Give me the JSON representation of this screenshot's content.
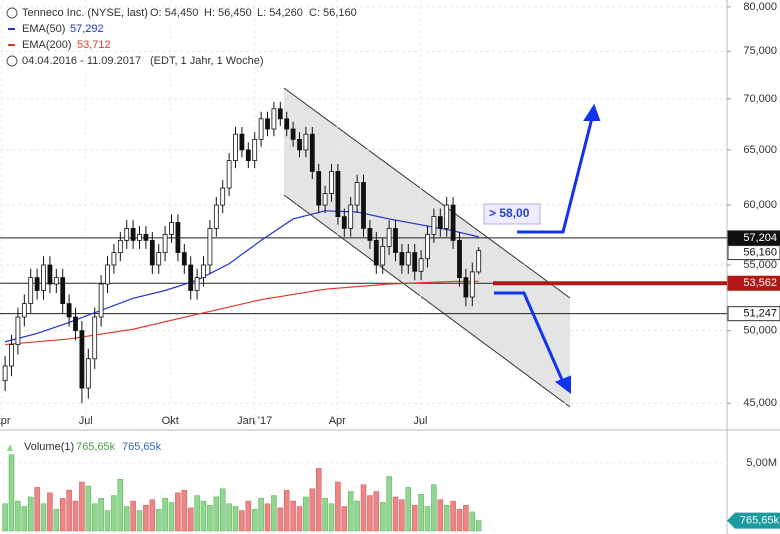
{
  "header": {
    "title": "Tenneco Inc. (NYSE, last)",
    "ohlc_text": [
      "O: 54,450",
      "H: 56,450",
      "L: 54,260",
      "C: 56,160"
    ],
    "range": "04.04.2016 - 11.09.2017",
    "range_note": "(EDT, 1 Jahr, 1 Woche)"
  },
  "chart_data": [
    {
      "type": "candlestick",
      "log_scale": true,
      "grid": true,
      "xlim": [
        -0.8,
        112.8
      ],
      "xticks": [
        {
          "value": -0.5,
          "label": "Apr"
        },
        {
          "value": 12.6,
          "label": "Jul"
        },
        {
          "value": 25.8,
          "label": "Okt"
        },
        {
          "value": 39,
          "label": "Jan '17"
        },
        {
          "value": 51.9,
          "label": "Apr"
        },
        {
          "value": 64.9,
          "label": "Jul"
        }
      ],
      "ylim": [
        43.6,
        80.8
      ],
      "yticks": [
        {
          "value": 45,
          "label": "45,000"
        },
        {
          "value": 50,
          "label": "50,000"
        },
        {
          "value": 55,
          "label": "55,000"
        },
        {
          "value": 60,
          "label": "60,000"
        },
        {
          "value": 65,
          "label": "65,000"
        },
        {
          "value": 70,
          "label": "70,000"
        },
        {
          "value": 75,
          "label": "75,000"
        },
        {
          "value": 80,
          "label": "80,000"
        }
      ],
      "x": [
        0,
        1,
        2,
        3,
        4,
        5,
        6,
        7,
        8,
        9,
        10,
        11,
        12,
        13,
        14,
        15,
        16,
        17,
        18,
        19,
        20,
        21,
        22,
        23,
        24,
        25,
        26,
        27,
        28,
        29,
        30,
        31,
        32,
        33,
        34,
        35,
        36,
        37,
        38,
        39,
        40,
        41,
        42,
        43,
        44,
        45,
        46,
        47,
        48,
        49,
        50,
        51,
        52,
        53,
        54,
        55,
        56,
        57,
        58,
        59,
        60,
        61,
        62,
        63,
        64,
        65,
        66,
        67,
        68,
        69,
        70,
        71,
        72,
        73,
        74
      ],
      "ohlc": [
        [
          46.5,
          48.2,
          45.8,
          47.5
        ],
        [
          47.5,
          49.7,
          46.8,
          49
        ],
        [
          49,
          51.7,
          48.3,
          51
        ],
        [
          51,
          52.7,
          50.3,
          52
        ],
        [
          52,
          54.7,
          51.3,
          54
        ],
        [
          54,
          54.7,
          52.3,
          53
        ],
        [
          53,
          55.7,
          52.3,
          55
        ],
        [
          55,
          55.7,
          52.8,
          53.5
        ],
        [
          53.5,
          54.7,
          52.8,
          54
        ],
        [
          54,
          54.7,
          51.3,
          52
        ],
        [
          52,
          52.7,
          50.3,
          51
        ],
        [
          51,
          51.7,
          49.3,
          50
        ],
        [
          50,
          50.7,
          45,
          46
        ],
        [
          46,
          48.7,
          45.3,
          48
        ],
        [
          48,
          51.7,
          47.3,
          51
        ],
        [
          51,
          54.2,
          50.3,
          53.5
        ],
        [
          53.5,
          55.7,
          52.8,
          55
        ],
        [
          55,
          56.7,
          54.3,
          56
        ],
        [
          56,
          57.7,
          55.3,
          57
        ],
        [
          57,
          58.7,
          56.3,
          58
        ],
        [
          58,
          58.7,
          56.3,
          57
        ],
        [
          57,
          58.2,
          56.3,
          57.5
        ],
        [
          57.5,
          58.2,
          56.3,
          57
        ],
        [
          57,
          57.7,
          54.3,
          55
        ],
        [
          55,
          56.7,
          54.3,
          56
        ],
        [
          56,
          58.2,
          55.3,
          57.5
        ],
        [
          57.5,
          59.2,
          56.8,
          58.5
        ],
        [
          58.5,
          59.2,
          55.3,
          56
        ],
        [
          56,
          56.7,
          54.3,
          55
        ],
        [
          55,
          55.7,
          52.3,
          53
        ],
        [
          53,
          54.7,
          52.3,
          54
        ],
        [
          54,
          55.7,
          53.3,
          55
        ],
        [
          55,
          58.7,
          54.3,
          58
        ],
        [
          58,
          60.7,
          57.3,
          60
        ],
        [
          60,
          62.2,
          59.3,
          61.5
        ],
        [
          61.5,
          64.7,
          60.8,
          64
        ],
        [
          64,
          67.2,
          63.3,
          66.5
        ],
        [
          66.5,
          67.2,
          64.3,
          65
        ],
        [
          65,
          65.7,
          63.3,
          64
        ],
        [
          64,
          66.7,
          63.3,
          66
        ],
        [
          66,
          68.7,
          65.3,
          68
        ],
        [
          68,
          68.7,
          66.3,
          67
        ],
        [
          67,
          69.7,
          66.3,
          69
        ],
        [
          69,
          69.7,
          67.3,
          68
        ],
        [
          68,
          68.7,
          66.3,
          67
        ],
        [
          67,
          67.7,
          65.3,
          66
        ],
        [
          66,
          66.7,
          64.3,
          65
        ],
        [
          65,
          67.2,
          64.3,
          66.5
        ],
        [
          66.5,
          67.2,
          62.3,
          63
        ],
        [
          63,
          63.7,
          59.3,
          60
        ],
        [
          60,
          61.7,
          59.3,
          61
        ],
        [
          61,
          63.7,
          60.3,
          63
        ],
        [
          63,
          63.7,
          58.3,
          59
        ],
        [
          59,
          59.7,
          57.3,
          58
        ],
        [
          58,
          60.7,
          57.3,
          60
        ],
        [
          60,
          62.7,
          59.3,
          62
        ],
        [
          62,
          62.7,
          57.3,
          58
        ],
        [
          58,
          58.7,
          56.3,
          57
        ],
        [
          57,
          57.7,
          54.3,
          55
        ],
        [
          55,
          57.2,
          54.3,
          56.5
        ],
        [
          56.5,
          58.7,
          55.8,
          58
        ],
        [
          58,
          58.7,
          55.3,
          56
        ],
        [
          56,
          56.7,
          54.3,
          55
        ],
        [
          55,
          56.7,
          54.3,
          56
        ],
        [
          56,
          56.7,
          53.8,
          54.5
        ],
        [
          54.5,
          56.2,
          53.8,
          55.5
        ],
        [
          55.5,
          58.2,
          54.8,
          57.5
        ],
        [
          57.5,
          59.7,
          56.8,
          59
        ],
        [
          59,
          59.7,
          57.3,
          58
        ],
        [
          58,
          60.7,
          57.3,
          60
        ],
        [
          60,
          60.7,
          56.3,
          57
        ],
        [
          57,
          57.7,
          53.3,
          54
        ],
        [
          54,
          54.7,
          51.8,
          52.5
        ],
        [
          52.5,
          55.2,
          51.8,
          54.45
        ],
        [
          54.45,
          56.45,
          54.26,
          56.16
        ]
      ],
      "series": [
        {
          "name": "EMA(50)",
          "value_label": "57,292",
          "color": "#2233cc",
          "x": [
            0,
            5,
            10,
            15,
            20,
            25,
            30,
            35,
            40,
            45,
            50,
            55,
            60,
            65,
            70,
            74
          ],
          "values": [
            49.2,
            49.8,
            50.6,
            51.5,
            52.4,
            53,
            53.8,
            55.1,
            57,
            58.8,
            59.5,
            59.4,
            58.8,
            58.3,
            57.8,
            57.29
          ]
        },
        {
          "name": "EMA(200)",
          "value_label": "53,712",
          "color": "#e03a2a",
          "x": [
            0,
            10,
            20,
            30,
            40,
            50,
            60,
            70,
            74
          ],
          "values": [
            49,
            49.4,
            50.1,
            51.2,
            52.3,
            53.1,
            53.5,
            53.7,
            53.71
          ]
        }
      ],
      "levels": [
        {
          "value": 57.204,
          "label": "57,204",
          "style": "dark"
        },
        {
          "value": 56.16,
          "label": "56,160",
          "style": "light"
        },
        {
          "value": 53.562,
          "label": "53,562",
          "style": "red"
        },
        {
          "value": 51.247,
          "label": "51,247",
          "style": "light"
        }
      ],
      "annotation": "> 58,00"
    },
    {
      "type": "bar",
      "name": "Volume(1)",
      "last_label": "765,65k",
      "up_color": "#8fd68f",
      "down_color": "#ee8484",
      "ylim": [
        0,
        7.2
      ],
      "yticks": [
        {
          "value": 5,
          "label": "5,00M"
        }
      ],
      "values": [
        2.0,
        5.6,
        2.2,
        1.8,
        2.5,
        3.2,
        2.0,
        2.8,
        1.6,
        2.4,
        3.0,
        2.2,
        3.6,
        3.3,
        2.0,
        2.4,
        1.5,
        2.6,
        3.8,
        1.8,
        2.2,
        1.5,
        1.9,
        2.3,
        1.6,
        2.4,
        2.1,
        2.8,
        3.0,
        1.7,
        2.6,
        2.2,
        1.9,
        2.5,
        3.1,
        2.0,
        1.8,
        1.5,
        2.2,
        1.6,
        2.4,
        2.0,
        2.6,
        1.7,
        3.0,
        2.2,
        1.8,
        2.5,
        3.1,
        4.6,
        2.4,
        2.0,
        3.6,
        1.8,
        2.9,
        2.2,
        3.4,
        2.6,
        2.9,
        2.1,
        4.0,
        2.5,
        2.3,
        3.2,
        1.9,
        2.7,
        1.8,
        3.4,
        2.3,
        1.9,
        2.2,
        1.6,
        1.9,
        1.4,
        0.76565
      ]
    }
  ]
}
